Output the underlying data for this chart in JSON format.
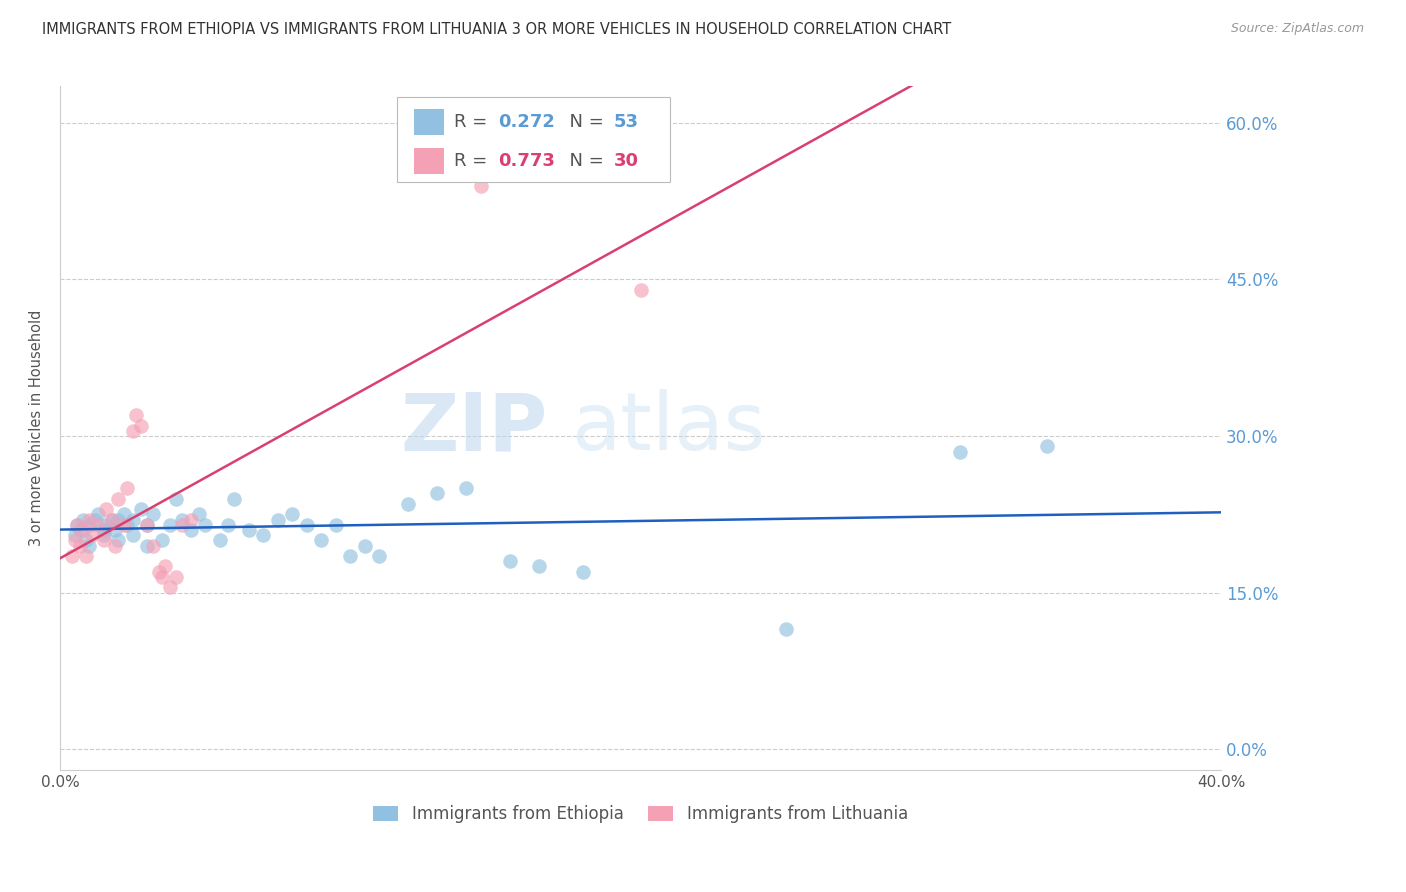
{
  "title": "IMMIGRANTS FROM ETHIOPIA VS IMMIGRANTS FROM LITHUANIA 3 OR MORE VEHICLES IN HOUSEHOLD CORRELATION CHART",
  "source": "Source: ZipAtlas.com",
  "ylabel": "3 or more Vehicles in Household",
  "ytick_values": [
    0.0,
    0.15,
    0.3,
    0.45,
    0.6
  ],
  "xlim": [
    0.0,
    0.4
  ],
  "ylim": [
    -0.02,
    0.635
  ],
  "watermark_zip": "ZIP",
  "watermark_atlas": "atlas",
  "legend_ethiopia_R": "0.272",
  "legend_ethiopia_N": "53",
  "legend_lithuania_R": "0.773",
  "legend_lithuania_N": "30",
  "color_ethiopia": "#92C0E0",
  "color_lithuania": "#F4A0B5",
  "color_ethiopia_line": "#1F5FBF",
  "color_lithuania_line": "#D94070",
  "color_right_axis": "#5B9BD5",
  "ethiopia_x": [
    0.005,
    0.006,
    0.007,
    0.008,
    0.009,
    0.01,
    0.01,
    0.012,
    0.013,
    0.015,
    0.015,
    0.016,
    0.018,
    0.019,
    0.02,
    0.02,
    0.022,
    0.023,
    0.025,
    0.025,
    0.028,
    0.03,
    0.03,
    0.032,
    0.035,
    0.038,
    0.04,
    0.042,
    0.045,
    0.048,
    0.05,
    0.055,
    0.058,
    0.06,
    0.065,
    0.07,
    0.075,
    0.08,
    0.085,
    0.09,
    0.095,
    0.1,
    0.105,
    0.11,
    0.12,
    0.13,
    0.14,
    0.155,
    0.165,
    0.18,
    0.25,
    0.31,
    0.34
  ],
  "ethiopia_y": [
    0.205,
    0.215,
    0.21,
    0.22,
    0.2,
    0.215,
    0.195,
    0.22,
    0.225,
    0.21,
    0.205,
    0.215,
    0.22,
    0.21,
    0.22,
    0.2,
    0.225,
    0.215,
    0.22,
    0.205,
    0.23,
    0.215,
    0.195,
    0.225,
    0.2,
    0.215,
    0.24,
    0.22,
    0.21,
    0.225,
    0.215,
    0.2,
    0.215,
    0.24,
    0.21,
    0.205,
    0.22,
    0.225,
    0.215,
    0.2,
    0.215,
    0.185,
    0.195,
    0.185,
    0.235,
    0.245,
    0.25,
    0.18,
    0.175,
    0.17,
    0.115,
    0.285,
    0.29
  ],
  "lithuania_x": [
    0.004,
    0.005,
    0.006,
    0.007,
    0.008,
    0.009,
    0.01,
    0.011,
    0.013,
    0.015,
    0.016,
    0.018,
    0.019,
    0.02,
    0.022,
    0.023,
    0.025,
    0.026,
    0.028,
    0.03,
    0.032,
    0.034,
    0.035,
    0.036,
    0.038,
    0.04,
    0.042,
    0.045,
    0.145,
    0.2
  ],
  "lithuania_y": [
    0.185,
    0.2,
    0.215,
    0.195,
    0.21,
    0.185,
    0.22,
    0.205,
    0.215,
    0.2,
    0.23,
    0.22,
    0.195,
    0.24,
    0.215,
    0.25,
    0.305,
    0.32,
    0.31,
    0.215,
    0.195,
    0.17,
    0.165,
    0.175,
    0.155,
    0.165,
    0.215,
    0.22,
    0.54,
    0.44
  ]
}
